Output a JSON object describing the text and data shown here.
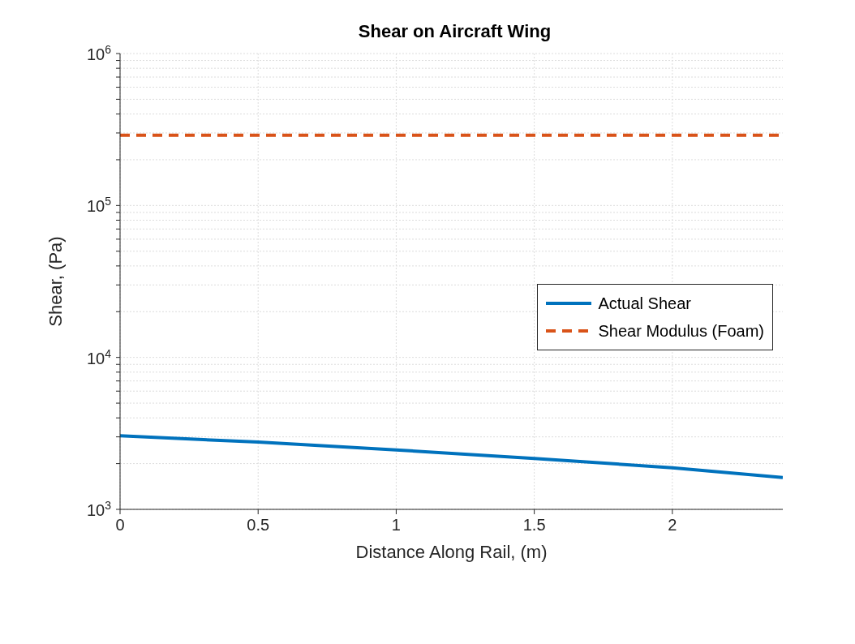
{
  "chart_data": {
    "type": "line",
    "title": "Shear on Aircraft Wing",
    "xlabel": "Distance Along Rail, (m)",
    "ylabel": "Shear, (Pa)",
    "xlim": [
      0,
      2.4
    ],
    "xticks": [
      0,
      0.5,
      1,
      1.5,
      2
    ],
    "ylim": [
      1000,
      1000000
    ],
    "log": "y",
    "yticks": [
      {
        "value": 1000,
        "label": "10$^{3}$"
      },
      {
        "value": 2000,
        "label": null
      },
      {
        "value": 3000,
        "label": null
      },
      {
        "value": 4000,
        "label": null
      },
      {
        "value": 5000,
        "label": null
      },
      {
        "value": 6000,
        "label": null
      },
      {
        "value": 7000,
        "label": null
      },
      {
        "value": 8000,
        "label": null
      },
      {
        "value": 9000,
        "label": null
      },
      {
        "value": 10000,
        "label": "10$^{4}$"
      },
      {
        "value": 20000,
        "label": null
      },
      {
        "value": 30000,
        "label": null
      },
      {
        "value": 40000,
        "label": null
      },
      {
        "value": 50000,
        "label": null
      },
      {
        "value": 60000,
        "label": null
      },
      {
        "value": 70000,
        "label": null
      },
      {
        "value": 80000,
        "label": null
      },
      {
        "value": 90000,
        "label": null
      },
      {
        "value": 100000,
        "label": "10$^{5}$"
      },
      {
        "value": 200000,
        "label": null
      },
      {
        "value": 300000,
        "label": null
      },
      {
        "value": 400000,
        "label": null
      },
      {
        "value": 500000,
        "label": null
      },
      {
        "value": 600000,
        "label": null
      },
      {
        "value": 700000,
        "label": null
      },
      {
        "value": 800000,
        "label": null
      },
      {
        "value": 900000,
        "label": null
      },
      {
        "value": 1000000,
        "label": "10$^{6}$"
      }
    ],
    "grid": true,
    "legend": "right",
    "marker": "none",
    "series": [
      {
        "name": "Actual Shear",
        "color": "#0072bd",
        "line_style": "solid",
        "x": [
          0,
          0.5,
          1,
          1.5,
          2,
          2.4
        ],
        "values": [
          3050,
          2770,
          2460,
          2165,
          1880,
          1620
        ]
      },
      {
        "name": "Shear Modulus (Foam)",
        "color": "#d95319",
        "line_style": "dashed",
        "x": [
          0,
          2.4
        ],
        "values": [
          290000,
          290000
        ]
      }
    ]
  }
}
